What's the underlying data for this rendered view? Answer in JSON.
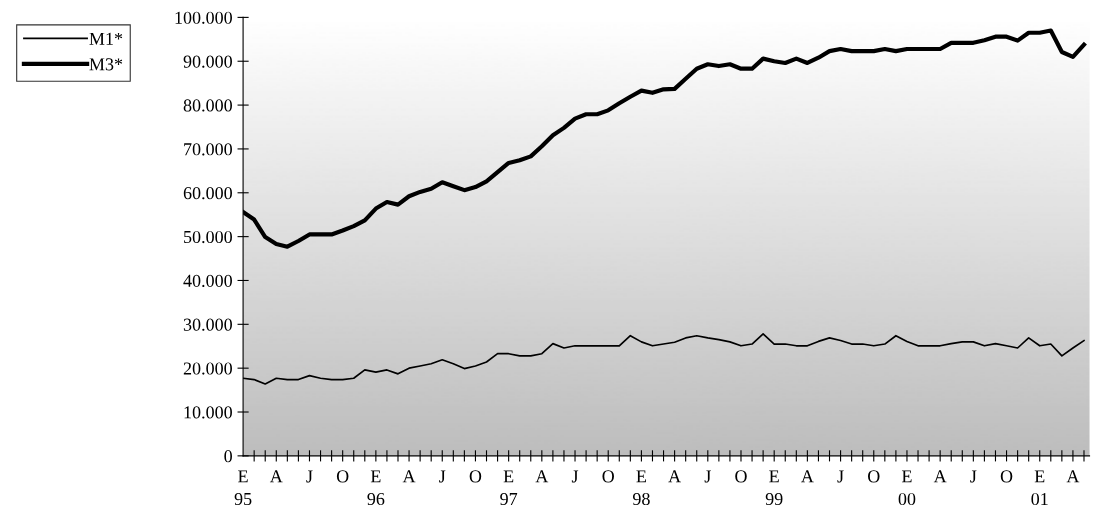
{
  "chart_data": {
    "type": "line",
    "categories": [
      "E\n95",
      null,
      null,
      "A",
      null,
      null,
      "J",
      null,
      null,
      "O",
      null,
      null,
      "E\n96",
      null,
      null,
      "A",
      null,
      null,
      "J",
      null,
      null,
      "O",
      null,
      null,
      "E\n97",
      null,
      null,
      "A",
      null,
      null,
      "J",
      null,
      null,
      "O",
      null,
      null,
      "E\n98",
      null,
      null,
      "A",
      null,
      null,
      "J",
      null,
      null,
      "O",
      null,
      null,
      "E\n99",
      null,
      null,
      "A",
      null,
      null,
      "J",
      null,
      null,
      "O",
      null,
      null,
      "E\n00",
      null,
      null,
      "A",
      null,
      null,
      "J",
      null,
      null,
      "O",
      null,
      null,
      "E\n01",
      null,
      null,
      "A",
      null
    ],
    "series": [
      {
        "name": "M1*",
        "color": "#000000",
        "values": [
          17700,
          17400,
          16400,
          17700,
          17400,
          17400,
          18300,
          17700,
          17400,
          17400,
          17700,
          19600,
          19100,
          19600,
          18700,
          20000,
          20500,
          21000,
          21900,
          21000,
          19900,
          20500,
          21400,
          23300,
          23300,
          22800,
          22800,
          23300,
          25600,
          24600,
          25100,
          25100,
          25100,
          25100,
          25100,
          27400,
          26000,
          25100,
          25500,
          25900,
          26900,
          27400,
          26900,
          26500,
          26000,
          25100,
          25500,
          27800,
          25500,
          25500,
          25100,
          25100,
          26100,
          26900,
          26300,
          25500,
          25500,
          25100,
          25500,
          27400,
          26100,
          25100,
          25100,
          25100,
          25600,
          26000,
          26000,
          25100,
          25600,
          25100,
          24600,
          26900,
          25100,
          25500,
          22800,
          24600,
          26300
        ]
      },
      {
        "name": "M3*",
        "color": "#000000",
        "values": [
          55600,
          53900,
          49900,
          48300,
          47700,
          49000,
          50500,
          50500,
          50500,
          51400,
          52400,
          53700,
          56400,
          57900,
          57300,
          59200,
          60200,
          60900,
          62400,
          61500,
          60600,
          61300,
          62600,
          64700,
          66800,
          67400,
          68300,
          70600,
          73100,
          74800,
          76900,
          77900,
          77900,
          78800,
          80400,
          81900,
          83300,
          82800,
          83600,
          83700,
          86000,
          88300,
          89300,
          88900,
          89300,
          88300,
          88300,
          90600,
          90000,
          89600,
          90600,
          89600,
          90800,
          92300,
          92800,
          92300,
          92300,
          92300,
          92800,
          92300,
          92800,
          92800,
          92800,
          92800,
          94200,
          94200,
          94200,
          94800,
          95600,
          95600,
          94700,
          96500,
          96500,
          97000,
          92100,
          91000,
          93800
        ]
      }
    ],
    "ylim": [
      0,
      100000
    ],
    "yticks": [
      {
        "value": 0,
        "label": "0"
      },
      {
        "value": 10000,
        "label": "10.000"
      },
      {
        "value": 20000,
        "label": "20.000"
      },
      {
        "value": 30000,
        "label": "30.000"
      },
      {
        "value": 40000,
        "label": "40.000"
      },
      {
        "value": 50000,
        "label": "50.000"
      },
      {
        "value": 60000,
        "label": "60.000"
      },
      {
        "value": 70000,
        "label": "70.000"
      },
      {
        "value": 80000,
        "label": "80.000"
      },
      {
        "value": 90000,
        "label": "90.000"
      },
      {
        "value": 100000,
        "label": "100.000"
      }
    ],
    "grid": false,
    "legend": "top left",
    "marker": "none",
    "line_style": "solid"
  }
}
